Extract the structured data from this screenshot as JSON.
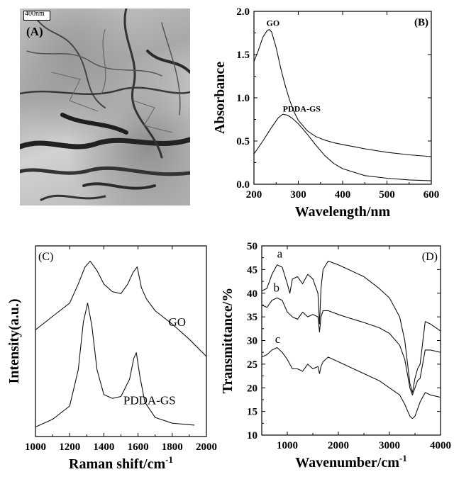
{
  "panel_a": {
    "label": "(A)",
    "scale_bar": "400nm"
  },
  "chart_data": [
    {
      "type": "line",
      "panel_label": "(B)",
      "xlabel": "Wavelength/nm",
      "ylabel": "Absorbance",
      "xlim": [
        200,
        600
      ],
      "ylim": [
        0.0,
        2.0
      ],
      "xticks": [
        200,
        300,
        400,
        500,
        600
      ],
      "yticks": [
        0.0,
        0.5,
        1.0,
        1.5,
        2.0
      ],
      "ytick_labels": [
        "0.0",
        "0.5",
        "1.0",
        "1.5",
        "2.0"
      ],
      "annotations": [
        {
          "text": "GO",
          "x": 228,
          "y": 1.83
        },
        {
          "text": "PDDA-GS",
          "x": 265,
          "y": 0.84
        }
      ],
      "series": [
        {
          "name": "GO",
          "x": [
            200,
            210,
            220,
            230,
            235,
            240,
            250,
            260,
            270,
            280,
            290,
            300,
            320,
            340,
            360,
            380,
            400,
            450,
            500,
            550,
            600
          ],
          "y": [
            1.42,
            1.55,
            1.7,
            1.78,
            1.79,
            1.76,
            1.58,
            1.35,
            1.15,
            0.98,
            0.84,
            0.74,
            0.62,
            0.55,
            0.51,
            0.48,
            0.46,
            0.41,
            0.37,
            0.34,
            0.32
          ]
        },
        {
          "name": "PDDA-GS",
          "x": [
            200,
            220,
            240,
            255,
            265,
            275,
            285,
            300,
            320,
            340,
            360,
            380,
            400,
            450,
            500,
            550,
            600
          ],
          "y": [
            0.35,
            0.5,
            0.66,
            0.77,
            0.81,
            0.8,
            0.77,
            0.7,
            0.58,
            0.45,
            0.33,
            0.24,
            0.18,
            0.1,
            0.07,
            0.05,
            0.04
          ]
        }
      ]
    },
    {
      "type": "line",
      "panel_label": "(C)",
      "xlabel": "Raman shift/cm-1",
      "xlabel_base": "Raman shift/cm",
      "xlabel_sup": "-1",
      "ylabel": "Intensity(a.u.)",
      "xlim": [
        1000,
        2000
      ],
      "ylim": [
        0,
        100
      ],
      "xticks": [
        1000,
        1200,
        1400,
        1600,
        1800,
        2000
      ],
      "annotations": [
        {
          "text": "GO",
          "x": 1880,
          "y": 58
        },
        {
          "text": "PDDA-GS",
          "x": 1820,
          "y": 17
        }
      ],
      "series": [
        {
          "name": "GO",
          "x": [
            1000,
            1100,
            1200,
            1250,
            1290,
            1320,
            1360,
            1400,
            1450,
            1500,
            1540,
            1570,
            1595,
            1620,
            1650,
            1700,
            1800,
            1900,
            2000
          ],
          "y": [
            56,
            63,
            70,
            80,
            89,
            92,
            87,
            80,
            76,
            75,
            80,
            86,
            89,
            78,
            72,
            66,
            59,
            51,
            42
          ]
        },
        {
          "name": "PDDA-GS",
          "x": [
            1000,
            1100,
            1200,
            1250,
            1280,
            1305,
            1330,
            1360,
            1400,
            1450,
            1500,
            1550,
            1575,
            1590,
            1610,
            1640,
            1700,
            1800,
            1930
          ],
          "y": [
            5,
            9,
            16,
            35,
            60,
            70,
            58,
            35,
            22,
            20,
            21,
            30,
            41,
            44,
            32,
            18,
            10,
            7,
            6
          ]
        }
      ]
    },
    {
      "type": "line",
      "panel_label": "(D)",
      "xlabel": "Wavenumber/cm-1",
      "xlabel_base": "Wavenumber/cm",
      "xlabel_sup": "-1",
      "ylabel": "Transmittance/%",
      "xlim": [
        500,
        4000
      ],
      "ylim": [
        10,
        50
      ],
      "xticks": [
        1000,
        2000,
        3000,
        4000
      ],
      "yticks": [
        10,
        15,
        20,
        25,
        30,
        35,
        40,
        45,
        50
      ],
      "annotations": [
        {
          "text": "a",
          "x": 800,
          "y": 47.5
        },
        {
          "text": "b",
          "x": 730,
          "y": 40.3
        },
        {
          "text": "c",
          "x": 760,
          "y": 29.5
        }
      ],
      "series": [
        {
          "name": "a",
          "x": [
            500,
            600,
            700,
            800,
            900,
            1000,
            1050,
            1100,
            1200,
            1300,
            1400,
            1500,
            1600,
            1630,
            1660,
            1700,
            1800,
            2000,
            2200,
            2500,
            2800,
            3000,
            3200,
            3300,
            3400,
            3450,
            3500,
            3550,
            3600,
            3700,
            3800,
            4000
          ],
          "y": [
            40.5,
            41,
            44,
            46,
            45.5,
            42,
            40,
            43,
            43.5,
            42,
            44,
            43,
            40,
            33.5,
            41,
            45,
            46.8,
            46,
            45,
            43.5,
            41,
            39,
            35,
            30,
            21,
            19,
            22,
            24,
            25,
            34,
            33.5,
            32
          ]
        },
        {
          "name": "b",
          "x": [
            500,
            600,
            700,
            800,
            900,
            1000,
            1100,
            1200,
            1300,
            1400,
            1500,
            1600,
            1630,
            1660,
            1700,
            1800,
            2000,
            2200,
            2500,
            2800,
            3000,
            3200,
            3300,
            3400,
            3450,
            3500,
            3550,
            3600,
            3700,
            3800,
            4000
          ],
          "y": [
            37.5,
            37,
            38.5,
            39,
            38.5,
            36,
            35,
            34.5,
            36,
            35,
            35.5,
            35,
            31.8,
            35,
            36.3,
            36.3,
            35.5,
            34.8,
            33.8,
            32.7,
            31.5,
            29,
            26,
            20,
            18.5,
            20,
            21.5,
            22,
            28,
            28,
            27.5
          ]
        },
        {
          "name": "c",
          "x": [
            500,
            600,
            700,
            800,
            900,
            1000,
            1100,
            1200,
            1300,
            1400,
            1500,
            1600,
            1630,
            1660,
            1700,
            1800,
            2000,
            2200,
            2500,
            2800,
            3000,
            3200,
            3300,
            3400,
            3450,
            3500,
            3550,
            3600,
            3700,
            3800,
            4000
          ],
          "y": [
            26.5,
            27,
            28,
            28.5,
            27.5,
            26,
            24,
            24,
            23.5,
            25,
            24,
            24.5,
            23,
            24.5,
            25.5,
            26.5,
            25.5,
            24.5,
            23,
            21.5,
            20,
            18.5,
            16.5,
            14,
            13.5,
            14,
            15.5,
            17,
            19,
            18.5,
            18
          ]
        }
      ]
    }
  ]
}
